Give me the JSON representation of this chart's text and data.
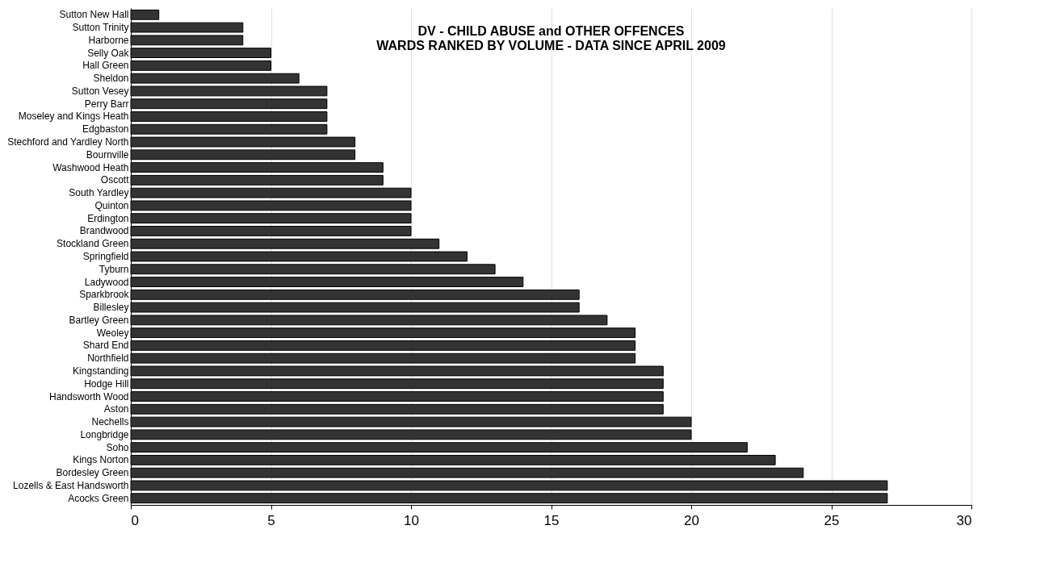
{
  "chart_data": {
    "type": "bar",
    "orientation": "horizontal",
    "title": "DV - CHILD ABUSE and OTHER OFFENCES",
    "subtitle": "WARDS RANKED BY VOLUME - DATA SINCE APRIL 2009",
    "categories": [
      "Sutton New Hall",
      "Sutton Trinity",
      "Harborne",
      "Selly Oak",
      "Hall Green",
      "Sheldon",
      "Sutton Vesey",
      "Perry Barr",
      "Moseley and Kings Heath",
      "Edgbaston",
      "Stechford and Yardley North",
      "Bournville",
      "Washwood Heath",
      "Oscott",
      "South Yardley",
      "Quinton",
      "Erdington",
      "Brandwood",
      "Stockland Green",
      "Springfield",
      "Tyburn",
      "Ladywood",
      "Sparkbrook",
      "Billesley",
      "Bartley Green",
      "Weoley",
      "Shard End",
      "Northfield",
      "Kingstanding",
      "Hodge Hill",
      "Handsworth Wood",
      "Aston",
      "Nechells",
      "Longbridge",
      "Soho",
      "Kings Norton",
      "Bordesley Green",
      "Lozells & East Handsworth",
      "Acocks Green"
    ],
    "values": [
      1,
      4,
      4,
      5,
      5,
      6,
      7,
      7,
      7,
      7,
      8,
      8,
      9,
      9,
      10,
      10,
      10,
      10,
      11,
      12,
      13,
      14,
      16,
      16,
      17,
      18,
      18,
      18,
      19,
      19,
      19,
      19,
      20,
      20,
      22,
      23,
      24,
      27,
      27
    ],
    "color": "#333333",
    "xlim": [
      0,
      30
    ],
    "xticks": [
      0,
      5,
      10,
      15,
      20,
      25,
      30
    ],
    "grid": "x"
  }
}
